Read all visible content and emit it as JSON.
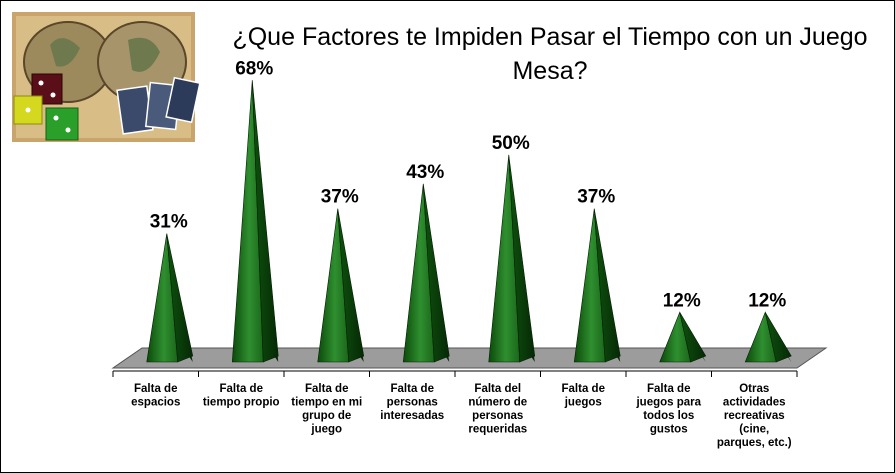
{
  "chart_data": {
    "type": "bar",
    "title_line1": "¿Que Factores te Impiden Pasar el Tiempo con un Juego",
    "title_line2": "Mesa?",
    "categories": [
      [
        "Falta de",
        "espacios"
      ],
      [
        "Falta de",
        "tiempo propio"
      ],
      [
        "Falta de",
        "tiempo en mi",
        "grupo de",
        "juego"
      ],
      [
        "Falta de",
        "personas",
        "interesadas"
      ],
      [
        "Falta del",
        "número de",
        "personas",
        "requeridas"
      ],
      [
        "Falta de",
        "juegos"
      ],
      [
        "Falta de",
        "juegos para",
        "todos los",
        "gustos"
      ],
      [
        "Otras",
        "actividades",
        "recreativas",
        "(cine,",
        "parques, etc.)"
      ]
    ],
    "values": [
      31,
      68,
      37,
      43,
      50,
      37,
      12,
      12
    ],
    "value_labels": [
      "31%",
      "68%",
      "37%",
      "43%",
      "50%",
      "37%",
      "12%",
      "12%"
    ],
    "ylim": [
      0,
      70
    ],
    "colors": {
      "bar_light": "#2f8a2f",
      "bar_dark": "#0a3d0a",
      "floor": "#9c9c9c",
      "axis": "#000000"
    },
    "decoration": {
      "image": "world-map-dice-cards-icon"
    }
  }
}
